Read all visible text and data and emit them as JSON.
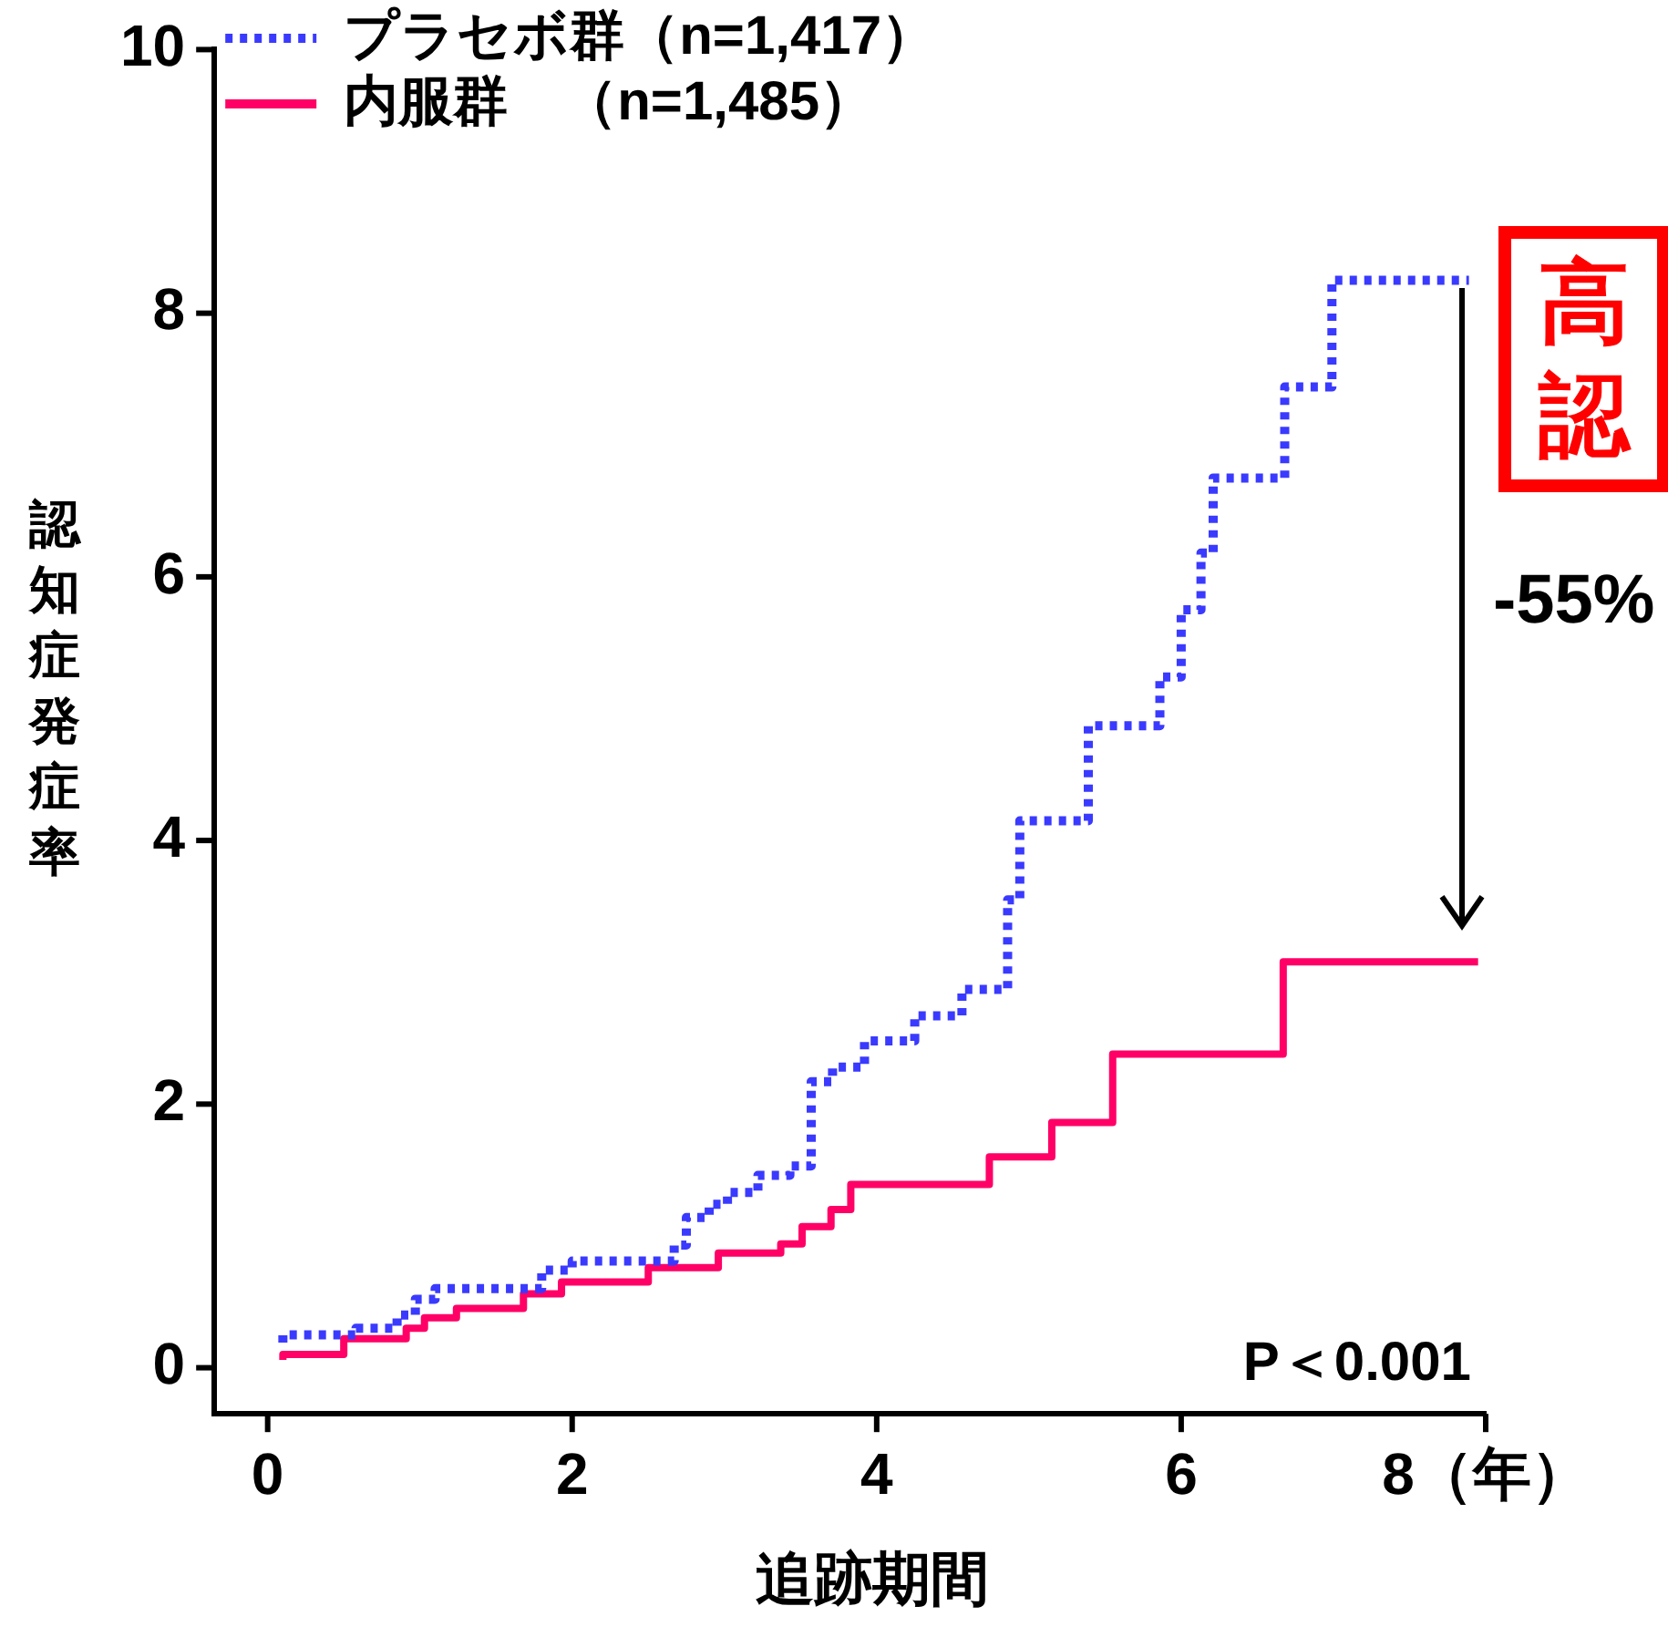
{
  "chart_data": {
    "type": "step",
    "xlabel": "追跡期間",
    "ylabel": "認知症発症率",
    "xlim": [
      -0.35,
      8
    ],
    "ylim": [
      -0.35,
      10
    ],
    "xticks": [
      0,
      2,
      4,
      6,
      {
        "value": 8,
        "label": "8（年）"
      }
    ],
    "yticks": [
      0,
      2,
      4,
      6,
      8,
      10
    ],
    "series": [
      {
        "name": "プラセボ群（n=1,417）",
        "color": "#3a3aff",
        "line_style": "dotted",
        "x": [
          0.1,
          0.58,
          0.85,
          0.97,
          1.1,
          1.8,
          2.0,
          2.67,
          2.75,
          2.9,
          3.02,
          3.22,
          3.43,
          3.57,
          3.71,
          3.92,
          4.25,
          4.56,
          4.86,
          4.94,
          5.39,
          5.86,
          6.0,
          6.13,
          6.21,
          6.68,
          6.99,
          7.13,
          7.89
        ],
        "values": [
          0.19,
          0.25,
          0.3,
          0.4,
          0.52,
          0.6,
          0.74,
          0.81,
          0.93,
          1.14,
          1.24,
          1.33,
          1.46,
          1.53,
          2.17,
          2.28,
          2.48,
          2.67,
          2.87,
          3.55,
          4.15,
          4.87,
          5.24,
          5.75,
          6.18,
          6.75,
          7.44,
          8.25,
          8.25
        ]
      },
      {
        "name": "内服群　（n=1,485）",
        "color": "#ff0066",
        "line_style": "solid",
        "x": [
          0.1,
          0.5,
          0.91,
          1.03,
          1.24,
          1.68,
          1.93,
          2.5,
          2.96,
          3.37,
          3.51,
          3.7,
          3.83,
          4.74,
          5.15,
          5.55,
          6.67,
          7.09,
          7.95
        ],
        "values": [
          0.06,
          0.1,
          0.22,
          0.3,
          0.38,
          0.45,
          0.56,
          0.65,
          0.76,
          0.87,
          0.94,
          1.07,
          1.2,
          1.39,
          1.6,
          1.86,
          2.38,
          3.08,
          3.08
        ]
      }
    ],
    "annotations": [
      "P＜0.001",
      "-55%",
      "高",
      "認"
    ],
    "grid": false,
    "legend": "top left",
    "marker": "none"
  }
}
